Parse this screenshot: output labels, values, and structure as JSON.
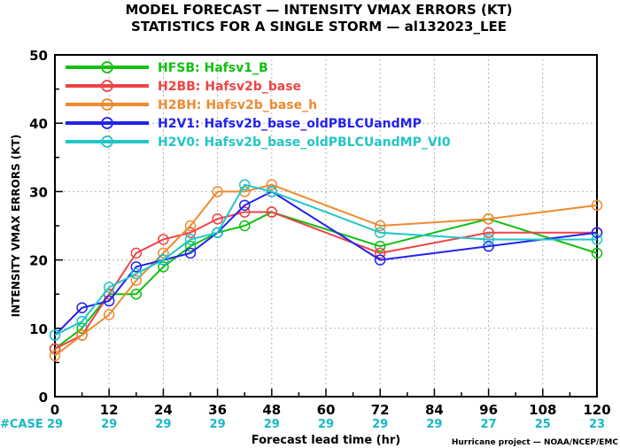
{
  "title_line1": "MODEL FORECAST — INTENSITY VMAX ERRORS (KT)",
  "title_line2": "STATISTICS FOR A SINGLE STORM — al132023_LEE",
  "credit": "Hurricane project — NOAA/NCEP/EMC",
  "chart_data": {
    "type": "line",
    "title": "MODEL FORECAST — INTENSITY VMAX ERRORS (KT)",
    "subtitle": "STATISTICS FOR A SINGLE STORM — al132023_LEE",
    "xlabel": "Forecast lead time (hr)",
    "ylabel": "INTENSITY VMAX ERRORS (KT)",
    "xlim": [
      0,
      120
    ],
    "ylim": [
      0,
      50
    ],
    "x_ticks": [
      0,
      12,
      24,
      36,
      48,
      60,
      72,
      84,
      96,
      108,
      120
    ],
    "y_ticks": [
      0,
      10,
      20,
      30,
      40,
      50
    ],
    "grid": true,
    "legend_position": "top-left",
    "case_label": "#CASE",
    "cases": [
      {
        "x": 0,
        "n": "29"
      },
      {
        "x": 12,
        "n": "29"
      },
      {
        "x": 24,
        "n": "29"
      },
      {
        "x": 36,
        "n": "29"
      },
      {
        "x": 48,
        "n": "29"
      },
      {
        "x": 60,
        "n": "29"
      },
      {
        "x": 72,
        "n": "29"
      },
      {
        "x": 84,
        "n": "29"
      },
      {
        "x": 96,
        "n": "27"
      },
      {
        "x": 108,
        "n": "25"
      },
      {
        "x": 120,
        "n": "23"
      }
    ],
    "series": [
      {
        "name": "HFSB",
        "desc": "Hafsv1_B",
        "color": "#10c010",
        "x": [
          0,
          6,
          12,
          18,
          24,
          30,
          36,
          42,
          48,
          72,
          96,
          120
        ],
        "y": [
          7,
          10,
          15,
          15,
          19,
          22,
          24,
          25,
          27,
          22,
          26,
          21
        ]
      },
      {
        "name": "H2BB",
        "desc": "Hafsv2b_base",
        "color": "#ee4444",
        "x": [
          0,
          6,
          12,
          18,
          24,
          30,
          36,
          42,
          48,
          72,
          96,
          120
        ],
        "y": [
          7,
          9,
          15,
          21,
          23,
          24,
          26,
          27,
          27,
          21,
          24,
          24
        ]
      },
      {
        "name": "H2BH",
        "desc": "Hafsv2b_base_h",
        "color": "#ee8a30",
        "x": [
          0,
          6,
          12,
          18,
          24,
          30,
          36,
          42,
          48,
          72,
          96,
          120
        ],
        "y": [
          6,
          9,
          12,
          17,
          21,
          25,
          30,
          30,
          31,
          25,
          26,
          28
        ]
      },
      {
        "name": "H2V1",
        "desc": "Hafsv2b_base_oldPBLCUandMP",
        "color": "#2222ee",
        "x": [
          0,
          6,
          12,
          18,
          24,
          30,
          36,
          42,
          48,
          72,
          96,
          120
        ],
        "y": [
          9,
          13,
          14,
          19,
          20,
          21,
          24,
          28,
          30,
          20,
          22,
          24
        ]
      },
      {
        "name": "H2V0",
        "desc": "Hafsv2b_base_oldPBLCUandMP_VI0",
        "color": "#22c6c6",
        "x": [
          0,
          6,
          12,
          18,
          24,
          30,
          36,
          42,
          48,
          72,
          96,
          120
        ],
        "y": [
          9,
          11,
          16,
          18,
          20,
          23,
          24,
          31,
          30,
          24,
          23,
          23
        ]
      }
    ]
  }
}
